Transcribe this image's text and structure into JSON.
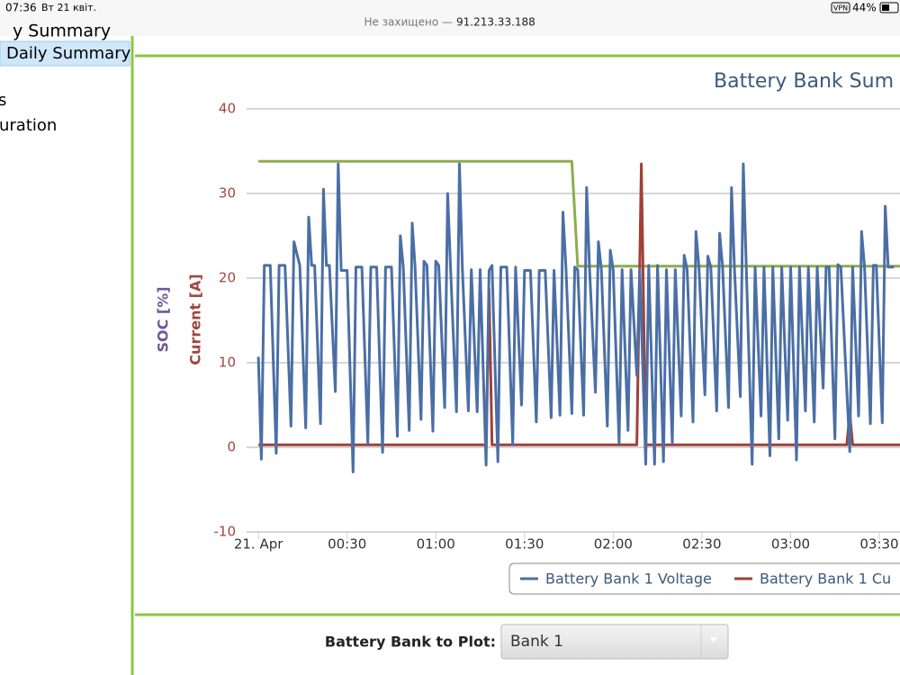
{
  "status_bar": {
    "time": "07:36",
    "date": "Вт 21 квіт.",
    "url_note": "Не захищено —",
    "url": "91.213.33.188",
    "vpn": "VPN",
    "battery": "44%"
  },
  "sidebar": {
    "items": [
      "y Summary",
      "Daily Summary",
      "s",
      "uration"
    ]
  },
  "form": {
    "label": "Battery Bank to Plot:",
    "selected": "Bank 1"
  },
  "chart_data": {
    "type": "line",
    "title": "Battery Bank Sum",
    "y_labels": [
      "SOC [%]",
      "Current [A]"
    ],
    "xlim": [
      -4,
      217
    ],
    "ylim": [
      -10,
      40
    ],
    "xticks": [
      {
        "value": 0,
        "label": "21. Apr"
      },
      {
        "value": 30,
        "label": "00:30"
      },
      {
        "value": 60,
        "label": "01:00"
      },
      {
        "value": 90,
        "label": "01:30"
      },
      {
        "value": 120,
        "label": "02:00"
      },
      {
        "value": 150,
        "label": "02:30"
      },
      {
        "value": 180,
        "label": "03:00"
      },
      {
        "value": 210,
        "label": "03:30"
      }
    ],
    "yticks": [
      -10,
      0,
      10,
      20,
      30,
      40
    ],
    "grid": true,
    "series": [
      {
        "name": "Battery Bank 1 Voltage",
        "color": "#4b6fa5",
        "x": [
          0,
          1,
          2,
          4,
          6,
          7,
          9,
          11,
          12,
          14,
          16,
          17,
          18,
          19,
          21,
          22,
          23,
          24,
          26,
          27,
          28,
          30,
          32,
          33,
          35,
          37,
          38,
          40,
          42,
          43,
          45,
          47,
          48,
          49,
          51,
          52,
          53,
          55,
          56,
          57,
          59,
          60,
          61,
          63,
          64,
          65,
          67,
          68,
          69,
          71,
          72,
          74,
          75,
          77,
          78,
          79,
          81,
          82,
          84,
          86,
          87,
          89,
          90,
          92,
          94,
          95,
          97,
          99,
          100,
          102,
          103,
          104,
          106,
          107,
          108,
          110,
          111,
          112,
          114,
          115,
          116,
          118,
          119,
          120,
          122,
          123,
          125,
          126,
          128,
          129,
          131,
          132,
          134,
          135,
          137,
          138,
          140,
          141,
          143,
          144,
          145,
          147,
          148,
          149,
          151,
          152,
          153,
          155,
          156,
          157,
          159,
          160,
          161,
          163,
          164,
          165,
          167,
          168,
          170,
          171,
          173,
          174,
          176,
          177,
          179,
          180,
          182,
          183,
          185,
          186,
          188,
          189,
          191,
          192,
          193,
          195,
          196,
          197,
          200,
          201,
          203,
          204,
          205,
          207,
          208,
          209,
          211,
          212,
          213,
          215
        ],
        "values": [
          10.7,
          -1.4,
          21.5,
          21.5,
          -0.7,
          21.5,
          21.5,
          2.5,
          24.3,
          21.5,
          2.3,
          27.2,
          21.5,
          21.5,
          2.8,
          30.5,
          21.5,
          21.5,
          6.6,
          33.5,
          20.9,
          20.9,
          -2.9,
          21.3,
          21.3,
          0.5,
          21.3,
          21.3,
          -0.6,
          21.3,
          21.3,
          1.3,
          25.0,
          21.3,
          2.0,
          26.5,
          21.3,
          3.3,
          22.0,
          21.5,
          1.9,
          22.0,
          21.5,
          4.7,
          30.0,
          21.0,
          4.2,
          33.5,
          21.0,
          4.3,
          21.0,
          4.2,
          21.0,
          -2.1,
          20.9,
          21.5,
          -1.7,
          21.3,
          21.3,
          0.3,
          21.3,
          5.0,
          20.9,
          20.9,
          3.0,
          20.9,
          20.9,
          3.5,
          20.9,
          3.8,
          27.8,
          21.3,
          4.0,
          21.3,
          21.0,
          3.8,
          30.7,
          21.0,
          6.5,
          24.3,
          21.0,
          2.5,
          23.3,
          21.0,
          0.5,
          21.0,
          2.0,
          21.0,
          8.5,
          21.0,
          -2.0,
          21.5,
          -2.0,
          21.5,
          -1.7,
          21.0,
          0.5,
          21.0,
          3.7,
          22.7,
          21.0,
          3.0,
          25.5,
          21.3,
          6.2,
          22.6,
          21.3,
          4.3,
          25.3,
          21.3,
          4.7,
          30.7,
          21.3,
          6.0,
          33.5,
          21.3,
          -2.0,
          21.3,
          3.7,
          21.3,
          -1.0,
          21.3,
          1.0,
          21.3,
          3.2,
          21.3,
          -1.5,
          21.3,
          4.3,
          21.3,
          3.0,
          21.3,
          7.0,
          21.3,
          21.3,
          1.0,
          21.6,
          21.3,
          -0.5,
          21.3,
          3.7,
          25.5,
          21.3,
          2.8,
          21.5,
          21.5,
          2.9,
          28.5,
          21.3,
          21.3
        ]
      },
      {
        "name": "Battery Bank 1 Cu",
        "color": "#a0403a",
        "x": [
          0,
          77,
          78,
          79,
          128,
          129.5,
          131,
          199,
          200,
          201,
          217
        ],
        "values": [
          0.3,
          0.3,
          18.7,
          0.3,
          0.3,
          33.5,
          0.3,
          0.3,
          4.0,
          0.3,
          0.3
        ]
      },
      {
        "color": "#8fac4f",
        "x": [
          0,
          106,
          108,
          217
        ],
        "values": [
          33.8,
          33.8,
          21.4,
          21.4
        ]
      }
    ]
  }
}
